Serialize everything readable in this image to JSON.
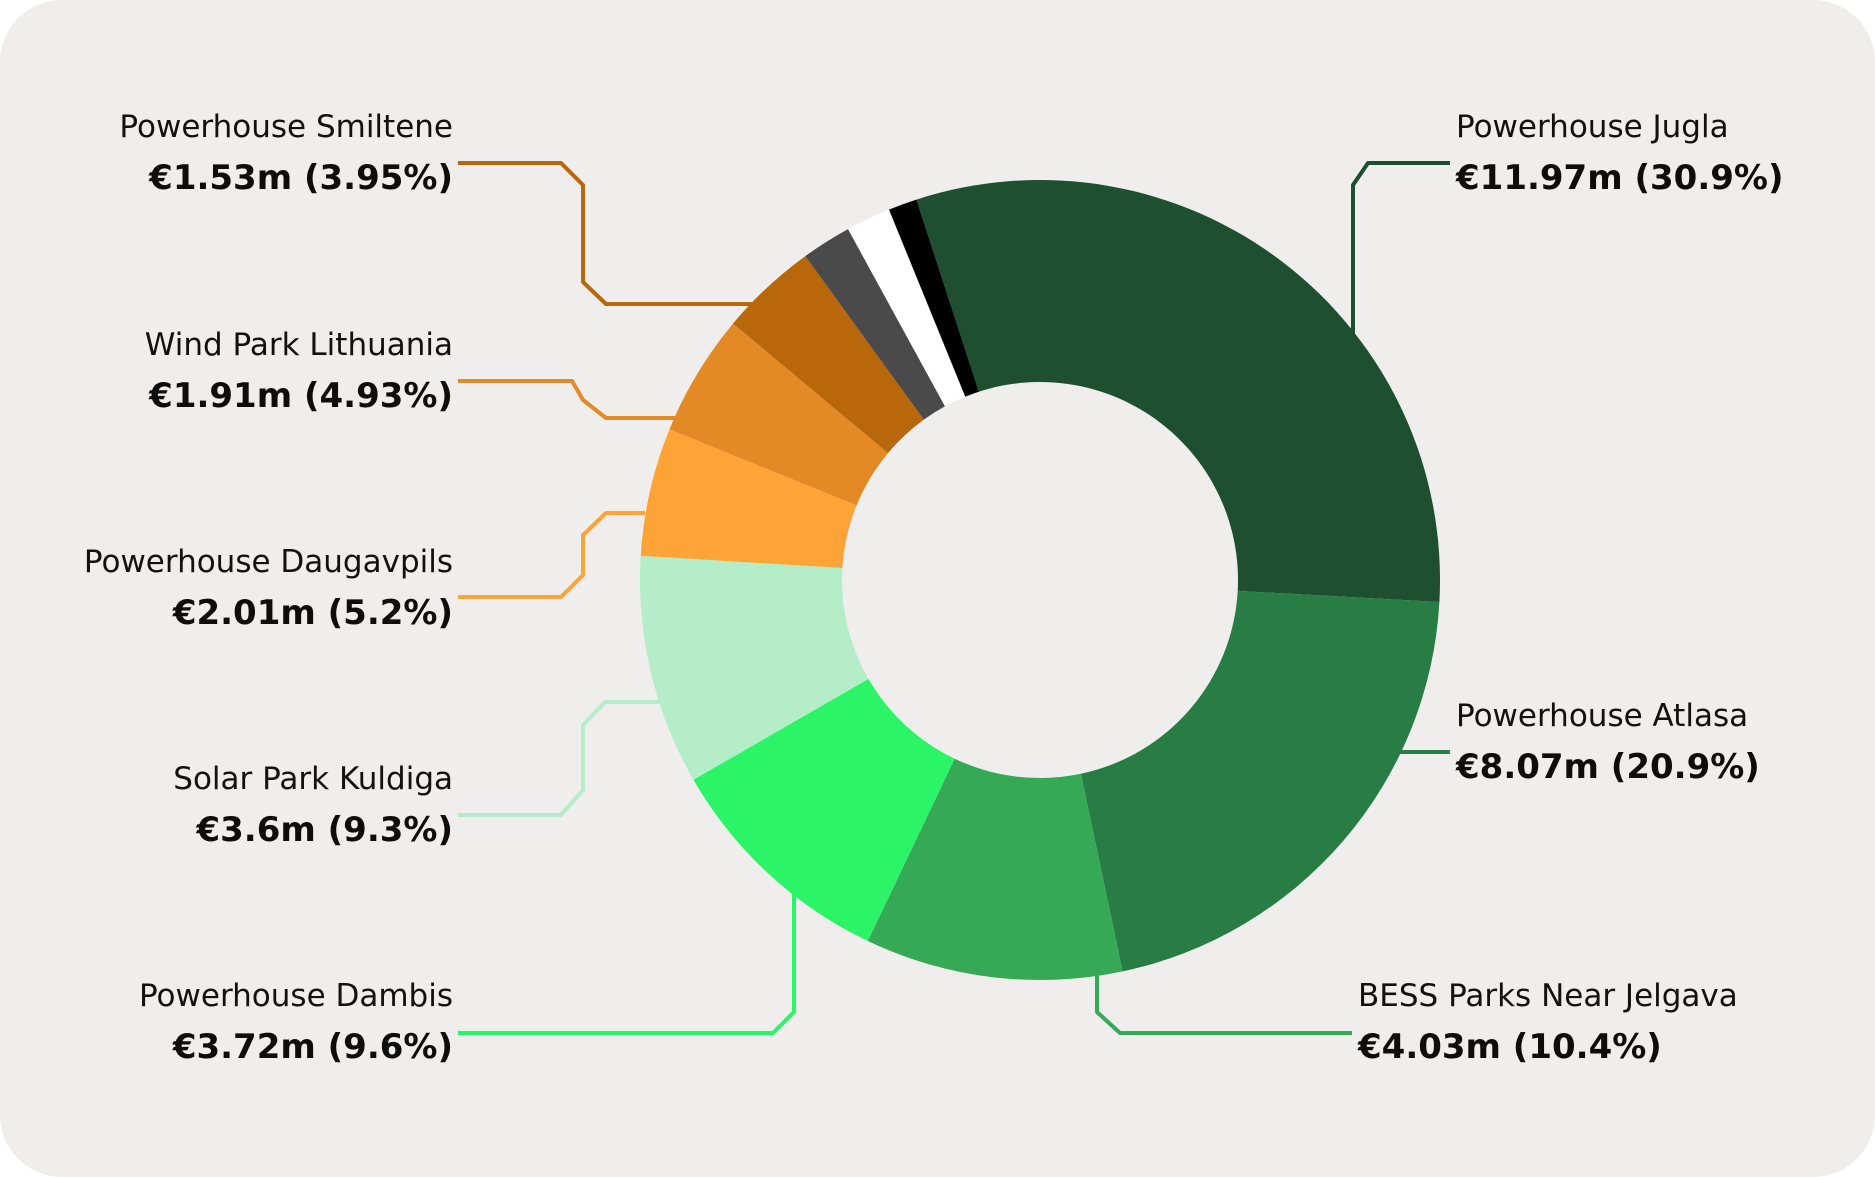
{
  "chart_data": {
    "type": "pie",
    "donut": true,
    "title": "",
    "currency": "€",
    "series": [
      {
        "name": "Powerhouse Jugla",
        "value": 11.97,
        "label": "€11.97m (30.9%)",
        "color": "#1e4f2e",
        "labeled": true
      },
      {
        "name": "Powerhouse Atlasa",
        "value": 8.07,
        "label": "€8.07m (20.9%)",
        "color": "#277d43",
        "labeled": true
      },
      {
        "name": "BESS Parks Near Jelgava",
        "value": 4.03,
        "label": "€4.03m (10.4%)",
        "color": "#35a955",
        "labeled": true
      },
      {
        "name": "Powerhouse Dambis",
        "value": 3.72,
        "label": "€3.72m (9.6%)",
        "color": "#2bf566",
        "labeled": true
      },
      {
        "name": "Solar Park Kuldiga",
        "value": 3.6,
        "label": "€3.6m (9.3%)",
        "color": "#b4edc8",
        "labeled": true
      },
      {
        "name": "Powerhouse Daugavpils",
        "value": 2.01,
        "label": "€2.01m (5.2%)",
        "color": "#fea335",
        "labeled": true
      },
      {
        "name": "Wind Park Lithuania",
        "value": 1.91,
        "label": "€1.91m (4.93%)",
        "color": "#e38925",
        "labeled": true
      },
      {
        "name": "Powerhouse Smiltene",
        "value": 1.53,
        "label": "€1.53m (3.95%)",
        "color": "#b8670a",
        "labeled": true
      },
      {
        "value": 0.78,
        "color": "#4a4a4a",
        "labeled": false
      },
      {
        "value": 0.7,
        "color": "#ffffff",
        "labeled": false
      },
      {
        "value": 0.45,
        "color": "#000000",
        "labeled": false
      }
    ]
  }
}
